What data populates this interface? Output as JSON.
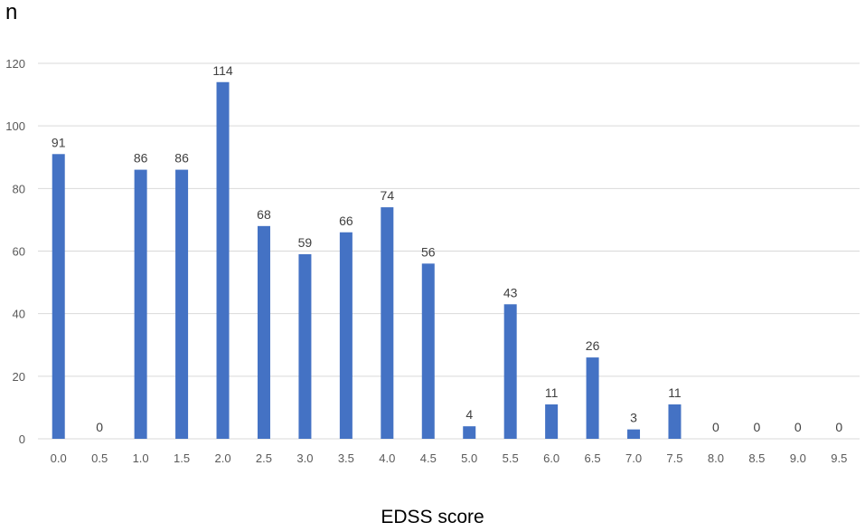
{
  "chart_data": {
    "type": "bar",
    "ylabel": "n",
    "xlabel": "EDSS score",
    "ylim": [
      0,
      120
    ],
    "yticks": [
      0,
      20,
      40,
      60,
      80,
      100,
      120
    ],
    "grid": true,
    "categories": [
      "0.0",
      "0.5",
      "1.0",
      "1.5",
      "2.0",
      "2.5",
      "3.0",
      "3.5",
      "4.0",
      "4.5",
      "5.0",
      "5.5",
      "6.0",
      "6.5",
      "7.0",
      "7.5",
      "8.0",
      "8.5",
      "9.0",
      "9.5"
    ],
    "values": [
      91,
      0,
      86,
      86,
      114,
      68,
      59,
      66,
      74,
      56,
      4,
      43,
      11,
      26,
      3,
      11,
      0,
      0,
      0,
      0
    ],
    "bar_color": "#4472c4",
    "grid_color": "#d9d9d9"
  }
}
